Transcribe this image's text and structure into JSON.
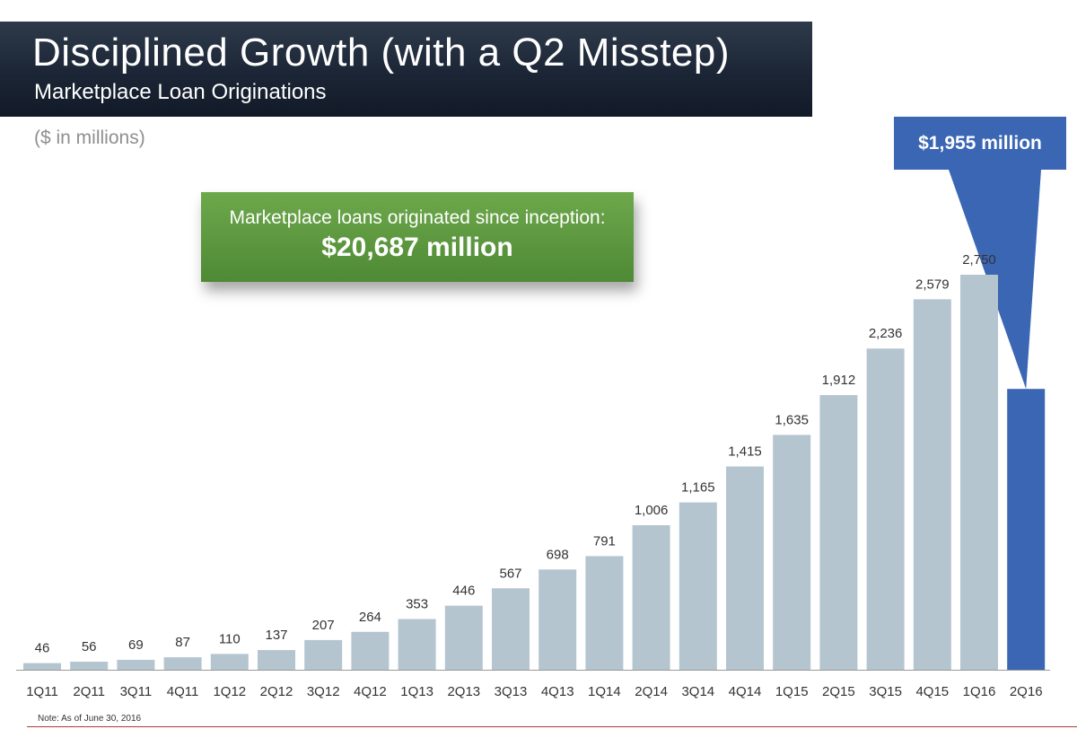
{
  "slide": {
    "title": "Disciplined  Growth (with a Q2 Misstep)",
    "subtitle": "Marketplace Loan Originations",
    "units": "($ in millions)",
    "footnote": "Note: As of June 30, 2016"
  },
  "callouts": {
    "inception_line1": "Marketplace loans originated since inception:",
    "inception_line2": "$20,687 million",
    "latest": "$1,955 million"
  },
  "colors": {
    "bar": "#b4c5d0",
    "highlight_bar": "#3a66b3",
    "banner": "#1b2535",
    "callout_green": "#5c9a3f"
  },
  "chart_data": {
    "type": "bar",
    "categories": [
      "1Q11",
      "2Q11",
      "3Q11",
      "4Q11",
      "1Q12",
      "2Q12",
      "3Q12",
      "4Q12",
      "1Q13",
      "2Q13",
      "3Q13",
      "4Q13",
      "1Q14",
      "2Q14",
      "3Q14",
      "4Q14",
      "1Q15",
      "2Q15",
      "3Q15",
      "4Q15",
      "1Q16",
      "2Q16"
    ],
    "values": [
      46,
      56,
      69,
      87,
      110,
      137,
      207,
      264,
      353,
      446,
      567,
      698,
      791,
      1006,
      1165,
      1415,
      1635,
      1912,
      2236,
      2579,
      2750,
      1955
    ],
    "data_labels": [
      "46",
      "56",
      "69",
      "87",
      "110",
      "137",
      "207",
      "264",
      "353",
      "446",
      "567",
      "698",
      "791",
      "1,006",
      "1,165",
      "1,415",
      "1,635",
      "1,912",
      "2,236",
      "2,579",
      "2,750",
      ""
    ],
    "highlight_index": 21,
    "ylim": [
      0,
      2750
    ],
    "title": "",
    "xlabel": "",
    "ylabel": "",
    "grid": false,
    "legend": "none"
  }
}
